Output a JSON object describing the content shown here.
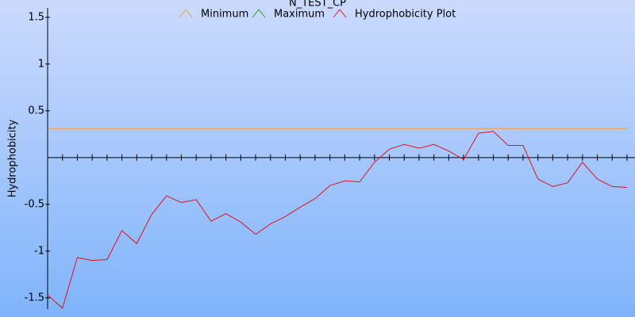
{
  "chart_data": {
    "type": "line",
    "title": "N_TEST_CP",
    "y_label": "Hydrophobicity",
    "ylim": [
      -1.62,
      1.6
    ],
    "yticks": [
      1.5,
      1,
      0.5,
      -0.5,
      -1,
      -1.5
    ],
    "series": [
      {
        "name": "Minimum",
        "color": "#f0a030",
        "values": [
          0.31,
          0.31,
          0.31,
          0.31,
          0.31,
          0.31,
          0.31,
          0.31,
          0.31,
          0.31,
          0.31,
          0.31,
          0.31,
          0.31,
          0.31,
          0.31,
          0.31,
          0.31,
          0.31,
          0.31,
          0.31,
          0.31,
          0.31,
          0.31,
          0.31,
          0.31,
          0.31,
          0.31,
          0.31,
          0.31,
          0.31,
          0.31,
          0.31,
          0.31,
          0.31,
          0.31,
          0.31,
          0.31,
          0.31,
          0.31
        ]
      },
      {
        "name": "Maximum",
        "color": "#1a9a1a",
        "values": [
          null,
          null,
          null,
          null,
          null,
          null,
          null,
          null,
          null,
          null,
          null,
          null,
          null,
          null,
          null,
          null,
          null,
          null,
          null,
          null,
          null,
          null,
          null,
          null,
          null,
          null,
          null,
          null,
          null,
          null,
          null,
          null,
          null,
          null,
          null,
          null,
          null,
          null,
          null,
          null
        ]
      },
      {
        "name": "Hydrophobicity Plot",
        "color": "#e0101e",
        "values": [
          -1.47,
          -1.61,
          -1.07,
          -1.1,
          -1.09,
          -0.78,
          -0.92,
          -0.61,
          -0.41,
          -0.48,
          -0.45,
          -0.68,
          -0.6,
          -0.69,
          -0.82,
          -0.71,
          -0.63,
          -0.53,
          -0.44,
          -0.3,
          -0.25,
          -0.26,
          -0.05,
          0.09,
          0.14,
          0.1,
          0.14,
          0.07,
          -0.02,
          0.26,
          0.28,
          0.13,
          0.13,
          -0.23,
          -0.31,
          -0.27,
          -0.05,
          -0.23,
          -0.31,
          -0.32
        ]
      }
    ]
  }
}
